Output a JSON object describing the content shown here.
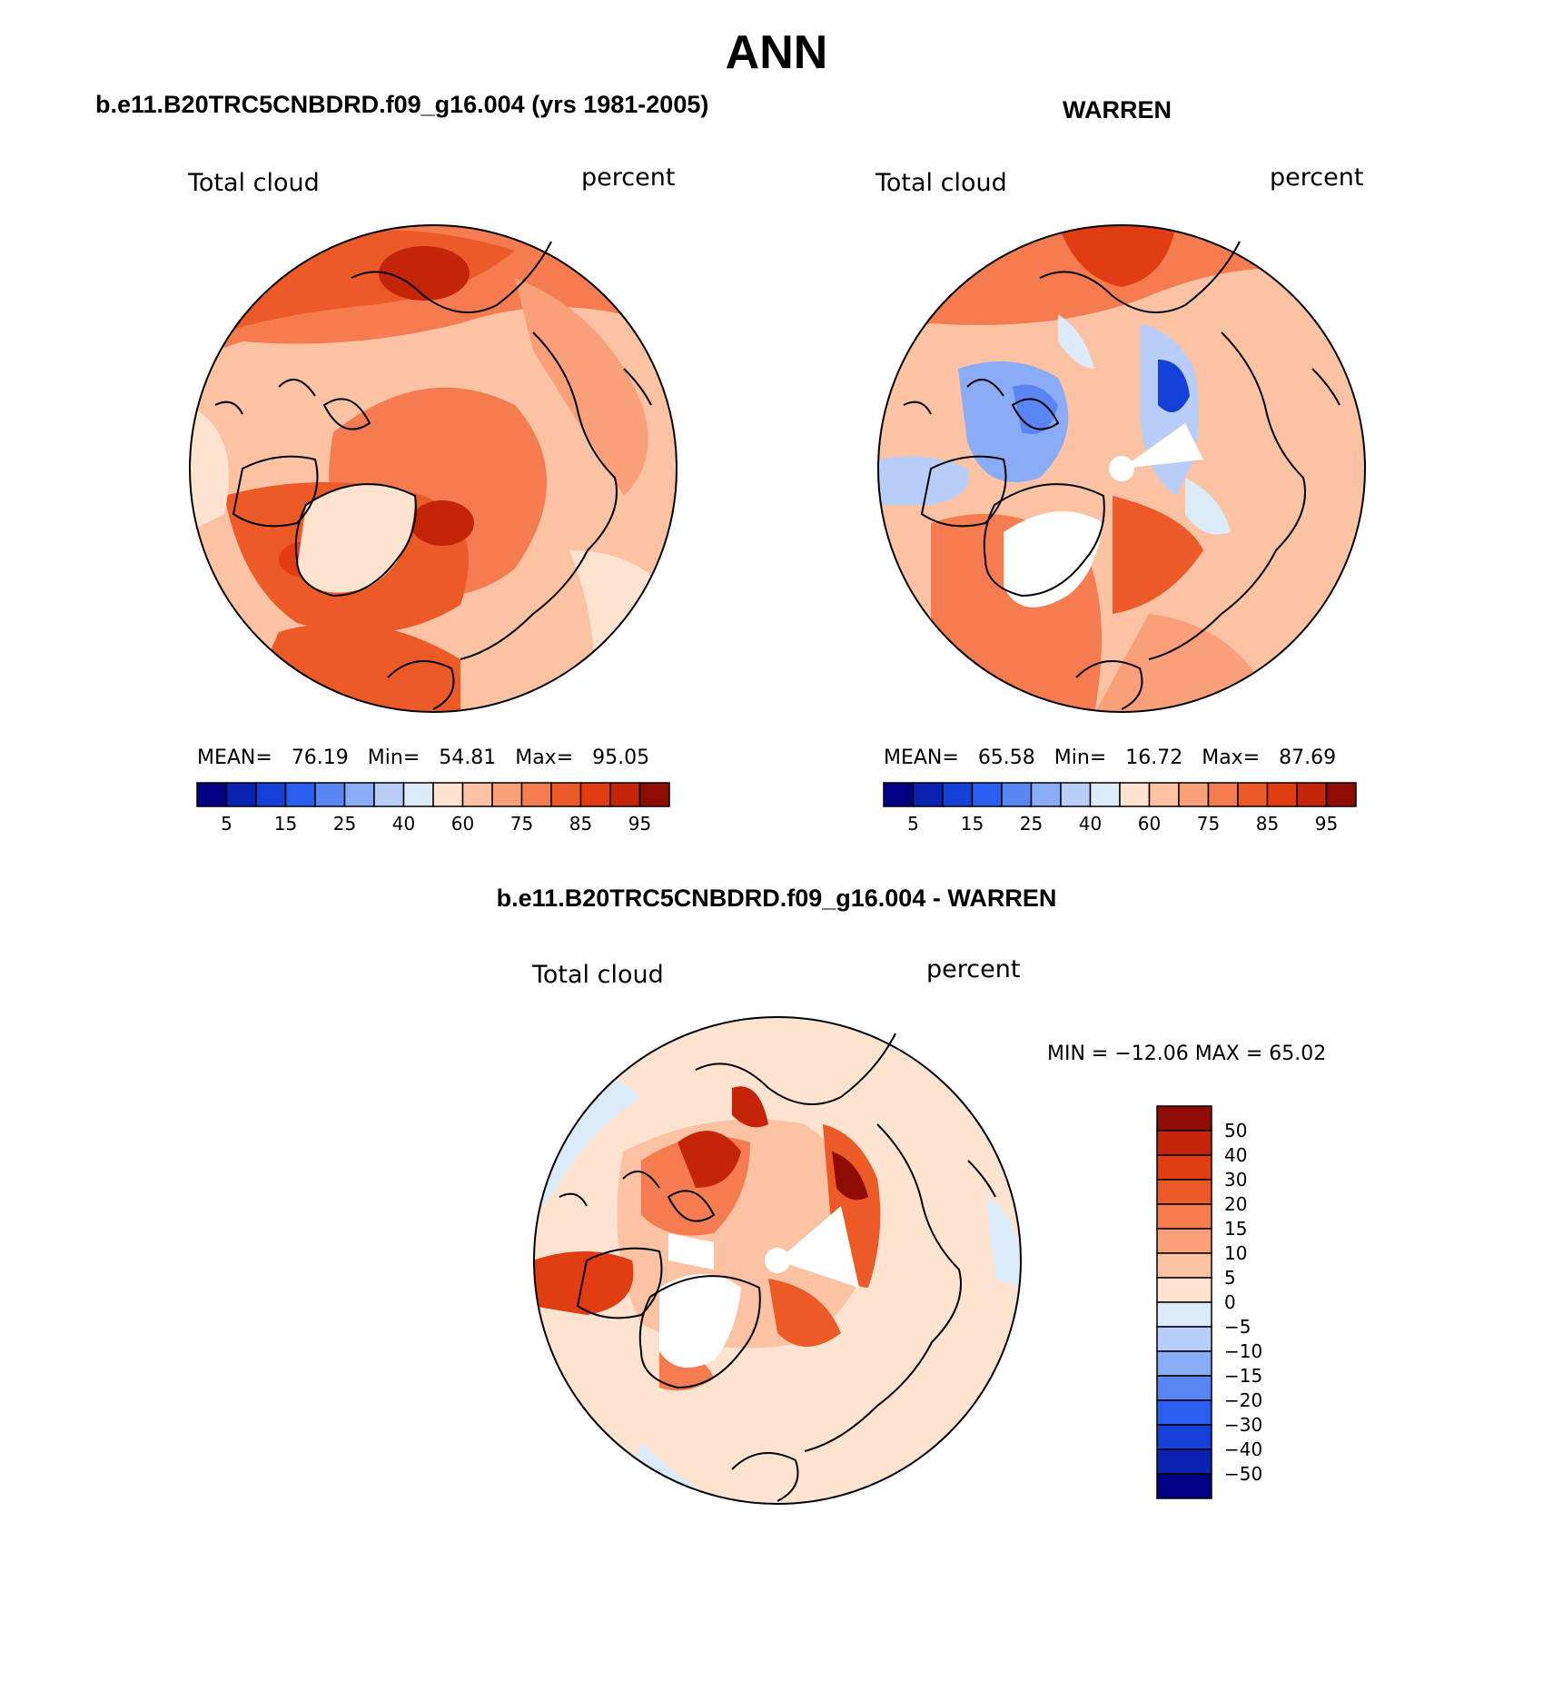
{
  "title": "ANN",
  "panels": [
    {
      "title": "b.e11.B20TRC5CNBDRD.f09_g16.004 (yrs 1981-2005)",
      "left_label": "Total cloud",
      "right_label": "percent",
      "stats": {
        "mean_label": "MEAN=",
        "mean": "76.19",
        "min_label": "Min=",
        "min": "54.81",
        "max_label": "Max=",
        "max": "95.05"
      }
    },
    {
      "title": "WARREN",
      "left_label": "Total cloud",
      "right_label": "percent",
      "stats": {
        "mean_label": "MEAN=",
        "mean": "65.58",
        "min_label": "Min=",
        "min": "16.72",
        "max_label": "Max=",
        "max": "87.69"
      }
    },
    {
      "title": "b.e11.B20TRC5CNBDRD.f09_g16.004 - WARREN",
      "left_label": "Total cloud",
      "right_label": "percent",
      "minmax": "MIN = −12.06 MAX =   65.02"
    }
  ],
  "colorbar_abs": {
    "colors": [
      "#000080",
      "#0a22b0",
      "#1440d8",
      "#2a5ef0",
      "#5a86f4",
      "#8aabf6",
      "#b8cdf8",
      "#dcebfa",
      "#fde3d0",
      "#fcc2a4",
      "#f9a07a",
      "#f57c50",
      "#ec5a28",
      "#e23c12",
      "#c42408",
      "#8e0c02"
    ],
    "tick_labels": [
      "5",
      "15",
      "25",
      "40",
      "60",
      "75",
      "85",
      "95"
    ]
  },
  "colorbar_diff": {
    "colors": [
      "#000080",
      "#0a22b0",
      "#1440d8",
      "#2a5ef0",
      "#5a86f4",
      "#8aabf6",
      "#b8cdf8",
      "#dcebfa",
      "#fde3d0",
      "#fcc2a4",
      "#f9a07a",
      "#f57c50",
      "#ec5a28",
      "#e23c12",
      "#c42408",
      "#8e0c02"
    ],
    "tick_labels": [
      "50",
      "40",
      "30",
      "20",
      "15",
      "10",
      "5",
      "0",
      "−5",
      "−10",
      "−15",
      "−20",
      "−30",
      "−40",
      "−50"
    ]
  }
}
